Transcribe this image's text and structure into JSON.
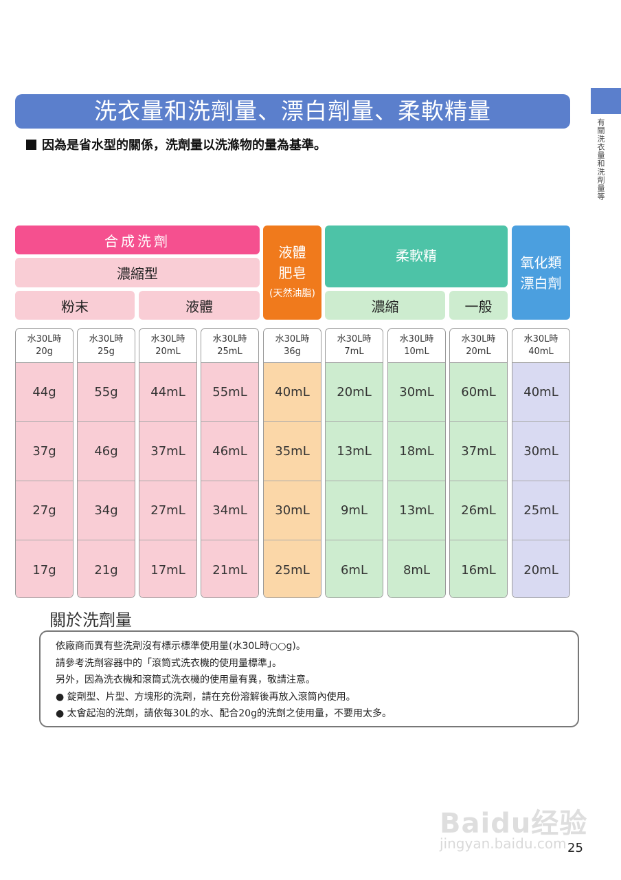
{
  "header": {
    "title": "洗衣量和洗劑量、漂白劑量、柔軟精量",
    "subtitle": "因為是省水型的關係，洗劑量以洗滌物的量為基準。",
    "side_tab": "有關洗衣量和洗劑量等"
  },
  "table": {
    "groups": {
      "synthetic": "合成洗劑",
      "concentrated_type": "濃縮型",
      "powder": "粉末",
      "liquid": "液體",
      "liquid_soap_1": "液體",
      "liquid_soap_2": "肥皂",
      "liquid_soap_3": "(天然油脂)",
      "softener": "柔軟精",
      "soft_conc": "濃縮",
      "soft_normal": "一般",
      "bleach_1": "氧化類",
      "bleach_2": "漂白劑"
    },
    "columns": [
      {
        "head1": "水30L時",
        "head2": "20g",
        "values": [
          "44g",
          "37g",
          "27g",
          "17g"
        ],
        "color": "#f9cdd5"
      },
      {
        "head1": "水30L時",
        "head2": "25g",
        "values": [
          "55g",
          "46g",
          "34g",
          "21g"
        ],
        "color": "#f9cdd5"
      },
      {
        "head1": "水30L時",
        "head2": "20mL",
        "values": [
          "44mL",
          "37mL",
          "27mL",
          "17mL"
        ],
        "color": "#f9cdd5"
      },
      {
        "head1": "水30L時",
        "head2": "25mL",
        "values": [
          "55mL",
          "46mL",
          "34mL",
          "21mL"
        ],
        "color": "#f9cdd5"
      },
      {
        "head1": "水30L時",
        "head2": "36g",
        "values": [
          "40mL",
          "35mL",
          "30mL",
          "25mL"
        ],
        "color": "#fbd7a8"
      },
      {
        "head1": "水30L時",
        "head2": "7mL",
        "values": [
          "20mL",
          "13mL",
          "9mL",
          "6mL"
        ],
        "color": "#cdeccf"
      },
      {
        "head1": "水30L時",
        "head2": "10mL",
        "values": [
          "30mL",
          "18mL",
          "13mL",
          "8mL"
        ],
        "color": "#cdeccf"
      },
      {
        "head1": "水30L時",
        "head2": "20mL",
        "values": [
          "60mL",
          "37mL",
          "26mL",
          "16mL"
        ],
        "color": "#cdeccf"
      },
      {
        "head1": "水30L時",
        "head2": "40mL",
        "values": [
          "40mL",
          "30mL",
          "25mL",
          "20mL"
        ],
        "color": "#d9daf2"
      }
    ]
  },
  "notes": {
    "title": "關於洗劑量",
    "lines": [
      "依廠商而異有些洗劑沒有標示標準使用量(水30L時○○g)。",
      "請參考洗劑容器中的「滾筒式洗衣機的使用量標準」。",
      "另外，因為洗衣機和滾筒式洗衣機的使用量有異，敬請注意。",
      "● 錠劑型、片型、方塊形的洗劑，請在充份溶解後再放入滾筒內使用。",
      "● 太會起泡的洗劑，請依每30L的水、配合20g的洗劑之使用量，不要用太多。"
    ]
  },
  "page_number": "25",
  "watermark": {
    "logo": "Baidu经验",
    "url": "jingyan.baidu.com"
  }
}
